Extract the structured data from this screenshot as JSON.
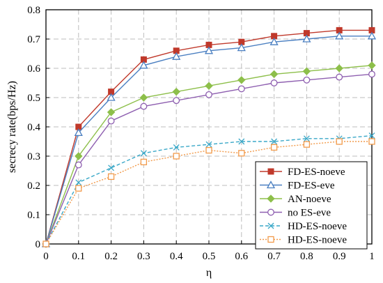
{
  "chart_data": {
    "type": "line",
    "xlabel": "η",
    "ylabel": "secrecy rate(bps/Hz)",
    "xlim": [
      0,
      1
    ],
    "ylim": [
      0,
      0.8
    ],
    "x": [
      0,
      0.1,
      0.2,
      0.3,
      0.4,
      0.5,
      0.6,
      0.7,
      0.8,
      0.9,
      1
    ],
    "x_tick_labels": [
      "0",
      "0.1",
      "0.2",
      "0.3",
      "0.4",
      "0.5",
      "0.6",
      "0.7",
      "0.8",
      "0.9",
      "1"
    ],
    "y_ticks": [
      0,
      0.1,
      0.2,
      0.3,
      0.4,
      0.5,
      0.6,
      0.7,
      0.8
    ],
    "y_tick_labels": [
      "0",
      "0.1",
      "0.2",
      "0.3",
      "0.4",
      "0.5",
      "0.6",
      "0.7",
      "0.8"
    ],
    "grid": true,
    "legend_position": "bottom-right",
    "series": [
      {
        "name": "FD-ES-noeve",
        "color": "#c0392b",
        "marker": "filled-square",
        "line": "solid",
        "values": [
          0,
          0.4,
          0.52,
          0.63,
          0.66,
          0.68,
          0.69,
          0.71,
          0.72,
          0.73,
          0.73
        ]
      },
      {
        "name": "FD-ES-eve",
        "color": "#4a7fc1",
        "marker": "open-triangle",
        "line": "solid",
        "values": [
          0,
          0.38,
          0.5,
          0.61,
          0.64,
          0.66,
          0.67,
          0.69,
          0.7,
          0.71,
          0.71
        ]
      },
      {
        "name": "AN-noeve",
        "color": "#8dbf4a",
        "marker": "filled-diamond",
        "line": "solid",
        "values": [
          0,
          0.3,
          0.45,
          0.5,
          0.52,
          0.54,
          0.56,
          0.58,
          0.59,
          0.6,
          0.61
        ]
      },
      {
        "name": "no ES-eve",
        "color": "#8e5fb0",
        "marker": "open-circle",
        "line": "solid",
        "values": [
          0,
          0.27,
          0.42,
          0.47,
          0.49,
          0.51,
          0.53,
          0.55,
          0.56,
          0.57,
          0.58
        ]
      },
      {
        "name": "HD-ES-noeve",
        "color": "#3aa8c8",
        "marker": "x",
        "line": "dashed",
        "values": [
          0,
          0.21,
          0.26,
          0.31,
          0.33,
          0.34,
          0.35,
          0.35,
          0.36,
          0.36,
          0.37
        ]
      },
      {
        "name": "HD-ES-noeve",
        "color": "#f29a4a",
        "marker": "open-square",
        "line": "dotted",
        "values": [
          0,
          0.19,
          0.23,
          0.28,
          0.3,
          0.32,
          0.31,
          0.33,
          0.34,
          0.35,
          0.35
        ]
      }
    ]
  }
}
